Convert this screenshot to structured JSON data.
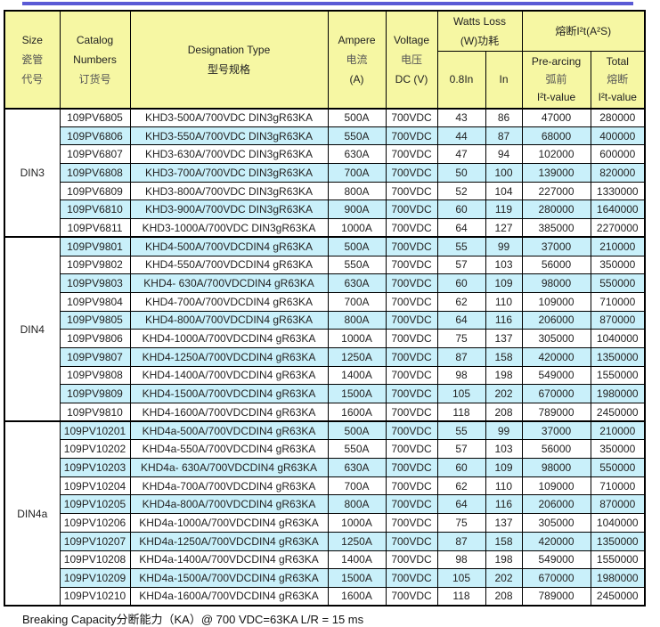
{
  "colors": {
    "accent_line": "#5a5ad5",
    "header_bg": "#f6f7a3",
    "row_alt_bg": "#c9f0fa",
    "row_bg": "#ffffff",
    "border": "#000000",
    "text": "#222222"
  },
  "table": {
    "header": {
      "size": [
        "Size",
        "瓷管",
        "代号"
      ],
      "catalog": [
        "Catalog",
        "Numbers",
        "订货号"
      ],
      "designation": [
        "Designation Type",
        "型号规格"
      ],
      "ampere": [
        "Ampere",
        "电流",
        "(A)"
      ],
      "voltage": [
        "Voltage",
        "电压",
        "DC (V)"
      ],
      "watts_loss": [
        "Watts Loss",
        "(W)功耗"
      ],
      "watts_sub_1": "0.8In",
      "watts_sub_2": "In",
      "i2t_group": "熔断I²t(A²S)",
      "prearcing": [
        "Pre-arcing",
        "弧前",
        "I²t-value"
      ],
      "total": [
        "Total",
        "熔断",
        "I²t-value"
      ]
    },
    "groups": [
      {
        "size": "DIN3",
        "rows": [
          [
            "109PV6805",
            "KHD3-500A/700VDC DIN3gR63KA",
            "500A",
            "700VDC",
            "43",
            "86",
            "47000",
            "280000"
          ],
          [
            "109PV6806",
            "KHD3-550A/700VDC DIN3gR63KA",
            "550A",
            "700VDC",
            "44",
            "87",
            "68000",
            "400000"
          ],
          [
            "109PV6807",
            "KHD3-630A/700VDC DIN3gR63KA",
            "630A",
            "700VDC",
            "47",
            "94",
            "102000",
            "600000"
          ],
          [
            "109PV6808",
            "KHD3-700A/700VDC DIN3gR63KA",
            "700A",
            "700VDC",
            "50",
            "100",
            "139000",
            "820000"
          ],
          [
            "109PV6809",
            "KHD3-800A/700VDC DIN3gR63KA",
            "800A",
            "700VDC",
            "52",
            "104",
            "227000",
            "1330000"
          ],
          [
            "109PV6810",
            "KHD3-900A/700VDC DIN3gR63KA",
            "900A",
            "700VDC",
            "60",
            "119",
            "280000",
            "1640000"
          ],
          [
            "109PV6811",
            "KHD3-1000A/700VDC DIN3gR63KA",
            "1000A",
            "700VDC",
            "64",
            "127",
            "385000",
            "2270000"
          ]
        ]
      },
      {
        "size": "DIN4",
        "rows": [
          [
            "109PV9801",
            "KHD4-500A/700VDCDIN4 gR63KA",
            "500A",
            "700VDC",
            "55",
            "99",
            "37000",
            "210000"
          ],
          [
            "109PV9802",
            "KHD4-550A/700VDCDIN4 gR63KA",
            "550A",
            "700VDC",
            "57",
            "103",
            "56000",
            "350000"
          ],
          [
            "109PV9803",
            "KHD4- 630A/700VDCDIN4 gR63KA",
            "630A",
            "700VDC",
            "60",
            "109",
            "98000",
            "550000"
          ],
          [
            "109PV9804",
            "KHD4-700A/700VDCDIN4 gR63KA",
            "700A",
            "700VDC",
            "62",
            "110",
            "109000",
            "710000"
          ],
          [
            "109PV9805",
            "KHD4-800A/700VDCDIN4 gR63KA",
            "800A",
            "700VDC",
            "64",
            "116",
            "206000",
            "870000"
          ],
          [
            "109PV9806",
            "KHD4-1000A/700VDCDIN4 gR63KA",
            "1000A",
            "700VDC",
            "75",
            "137",
            "305000",
            "1040000"
          ],
          [
            "109PV9807",
            "KHD4-1250A/700VDCDIN4 gR63KA",
            "1250A",
            "700VDC",
            "87",
            "158",
            "420000",
            "1350000"
          ],
          [
            "109PV9808",
            "KHD4-1400A/700VDCDIN4 gR63KA",
            "1400A",
            "700VDC",
            "98",
            "198",
            "549000",
            "1550000"
          ],
          [
            "109PV9809",
            "KHD4-1500A/700VDCDIN4 gR63KA",
            "1500A",
            "700VDC",
            "105",
            "202",
            "670000",
            "1980000"
          ],
          [
            "109PV9810",
            "KHD4-1600A/700VDCDIN4 gR63KA",
            "1600A",
            "700VDC",
            "118",
            "208",
            "789000",
            "2450000"
          ]
        ]
      },
      {
        "size": "DIN4a",
        "rows": [
          [
            "109PV10201",
            "KHD4a-500A/700VDCDIN4 gR63KA",
            "500A",
            "700VDC",
            "55",
            "99",
            "37000",
            "210000"
          ],
          [
            "109PV10202",
            "KHD4a-550A/700VDCDIN4 gR63KA",
            "550A",
            "700VDC",
            "57",
            "103",
            "56000",
            "350000"
          ],
          [
            "109PV10203",
            "KHD4a- 630A/700VDCDIN4 gR63KA",
            "630A",
            "700VDC",
            "60",
            "109",
            "98000",
            "550000"
          ],
          [
            "109PV10204",
            "KHD4a-700A/700VDCDIN4 gR63KA",
            "700A",
            "700VDC",
            "62",
            "110",
            "109000",
            "710000"
          ],
          [
            "109PV10205",
            "KHD4a-800A/700VDCDIN4 gR63KA",
            "800A",
            "700VDC",
            "64",
            "116",
            "206000",
            "870000"
          ],
          [
            "109PV10206",
            "KHD4a-1000A/700VDCDIN4 gR63KA",
            "1000A",
            "700VDC",
            "75",
            "137",
            "305000",
            "1040000"
          ],
          [
            "109PV10207",
            "KHD4a-1250A/700VDCDIN4 gR63KA",
            "1250A",
            "700VDC",
            "87",
            "158",
            "420000",
            "1350000"
          ],
          [
            "109PV10208",
            "KHD4a-1400A/700VDCDIN4 gR63KA",
            "1400A",
            "700VDC",
            "98",
            "198",
            "549000",
            "1550000"
          ],
          [
            "109PV10209",
            "KHD4a-1500A/700VDCDIN4 gR63KA",
            "1500A",
            "700VDC",
            "105",
            "202",
            "670000",
            "1980000"
          ],
          [
            "109PV10210",
            "KHD4a-1600A/700VDCDIN4 gR63KA",
            "1600A",
            "700VDC",
            "118",
            "208",
            "789000",
            "2450000"
          ]
        ]
      }
    ]
  },
  "footer": {
    "note": "Breaking Capacity分断能力（KA）@ 700 VDC=63KA   L/R = 15 ms"
  }
}
